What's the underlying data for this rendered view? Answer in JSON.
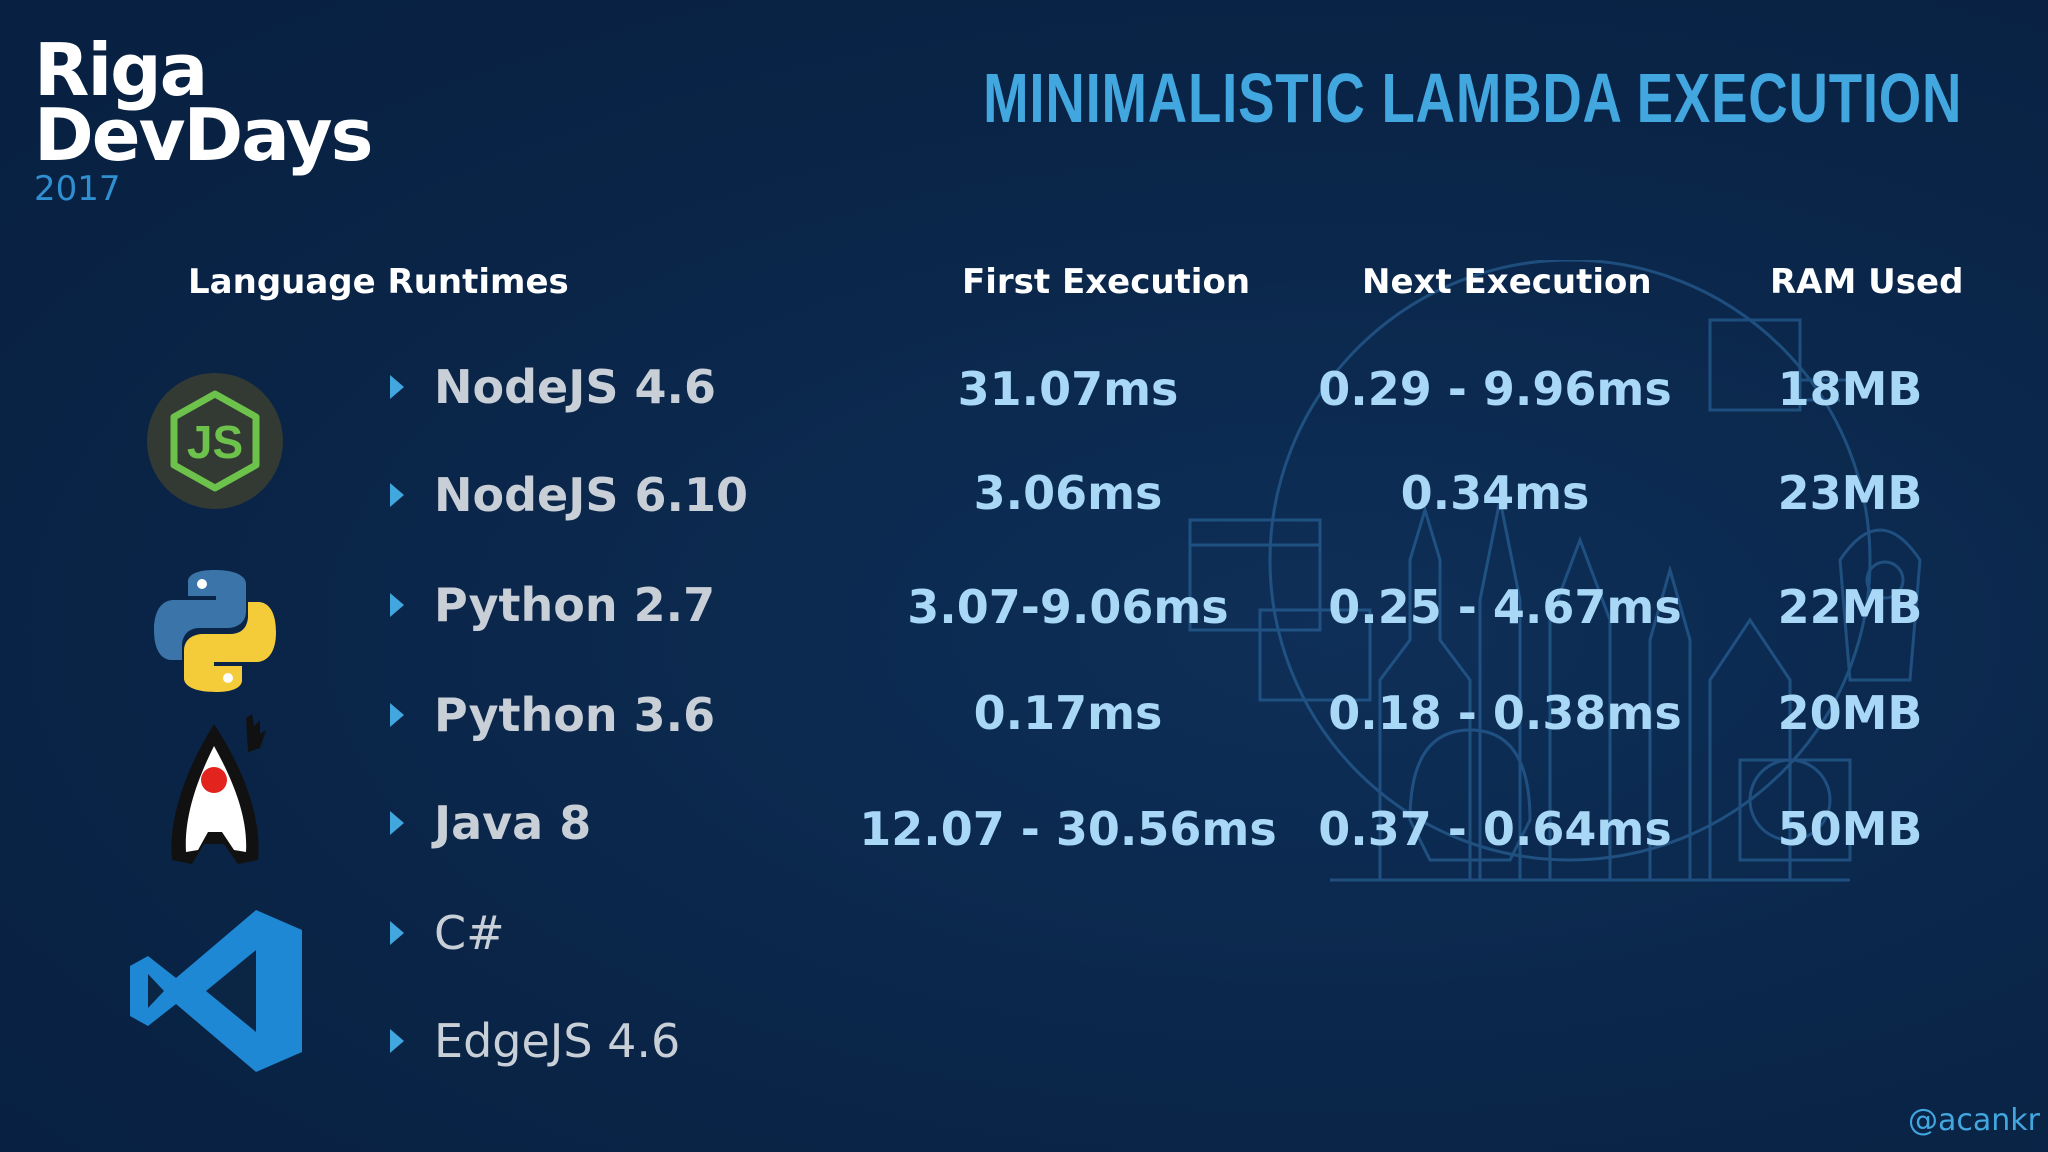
{
  "logo": {
    "line1": "Riga",
    "line2": "DevDays",
    "year": "2017"
  },
  "title": "MINIMALISTIC LAMBDA EXECUTION",
  "headers": {
    "language": "Language Runtimes",
    "first": "First Execution",
    "next": "Next Execution",
    "ram": "RAM Used"
  },
  "rows": [
    {
      "name": "NodeJS 4.6",
      "first": "31.07ms",
      "next": "0.29 - 9.96ms",
      "ram": "18MB"
    },
    {
      "name": "NodeJS 6.10",
      "first": "3.06ms",
      "next": "0.34ms",
      "ram": "23MB"
    },
    {
      "name": "Python 2.7",
      "first": "3.07-9.06ms",
      "next": "0.25 - 4.67ms",
      "ram": "22MB"
    },
    {
      "name": "Python 3.6",
      "first": "0.17ms",
      "next": "0.18 - 0.38ms",
      "ram": "20MB"
    },
    {
      "name": "Java 8",
      "first": "12.07 - 30.56ms",
      "next": "0.37 - 0.64ms",
      "ram": "50MB"
    },
    {
      "name": "C#",
      "first": "",
      "next": "",
      "ram": ""
    },
    {
      "name": "EdgeJS 4.6",
      "first": "",
      "next": "",
      "ram": ""
    }
  ],
  "handle": "@acankr",
  "icons": [
    "nodejs-icon",
    "python-icon",
    "java-duke-icon",
    "visual-studio-icon"
  ],
  "colors": {
    "background": "#0b2545",
    "accent": "#42a6df",
    "value": "#a8d8f6"
  }
}
